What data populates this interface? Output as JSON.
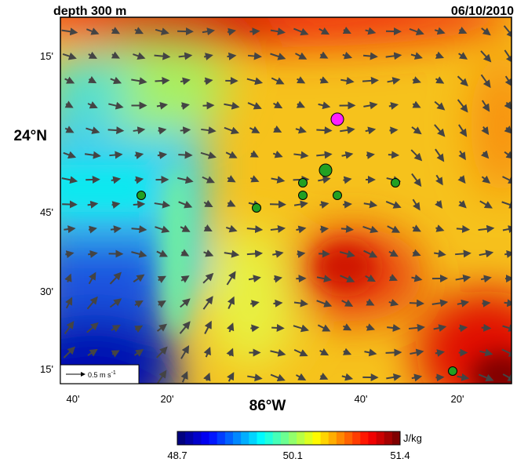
{
  "title": "depth 300 m",
  "date": "06/10/2010",
  "y_labels": [
    "15'",
    "24°N",
    "45'",
    "30'",
    "15'"
  ],
  "x_labels": [
    "40'",
    "20'",
    "86°W",
    "40'",
    "20'"
  ],
  "legend": {
    "text": "0.5 m s",
    "exponent": "-1"
  },
  "colorbar": {
    "unit": "J/kg",
    "min": 48.7,
    "max": 51.4,
    "ticks": [
      48.7,
      50.1,
      51.4
    ]
  }
}
